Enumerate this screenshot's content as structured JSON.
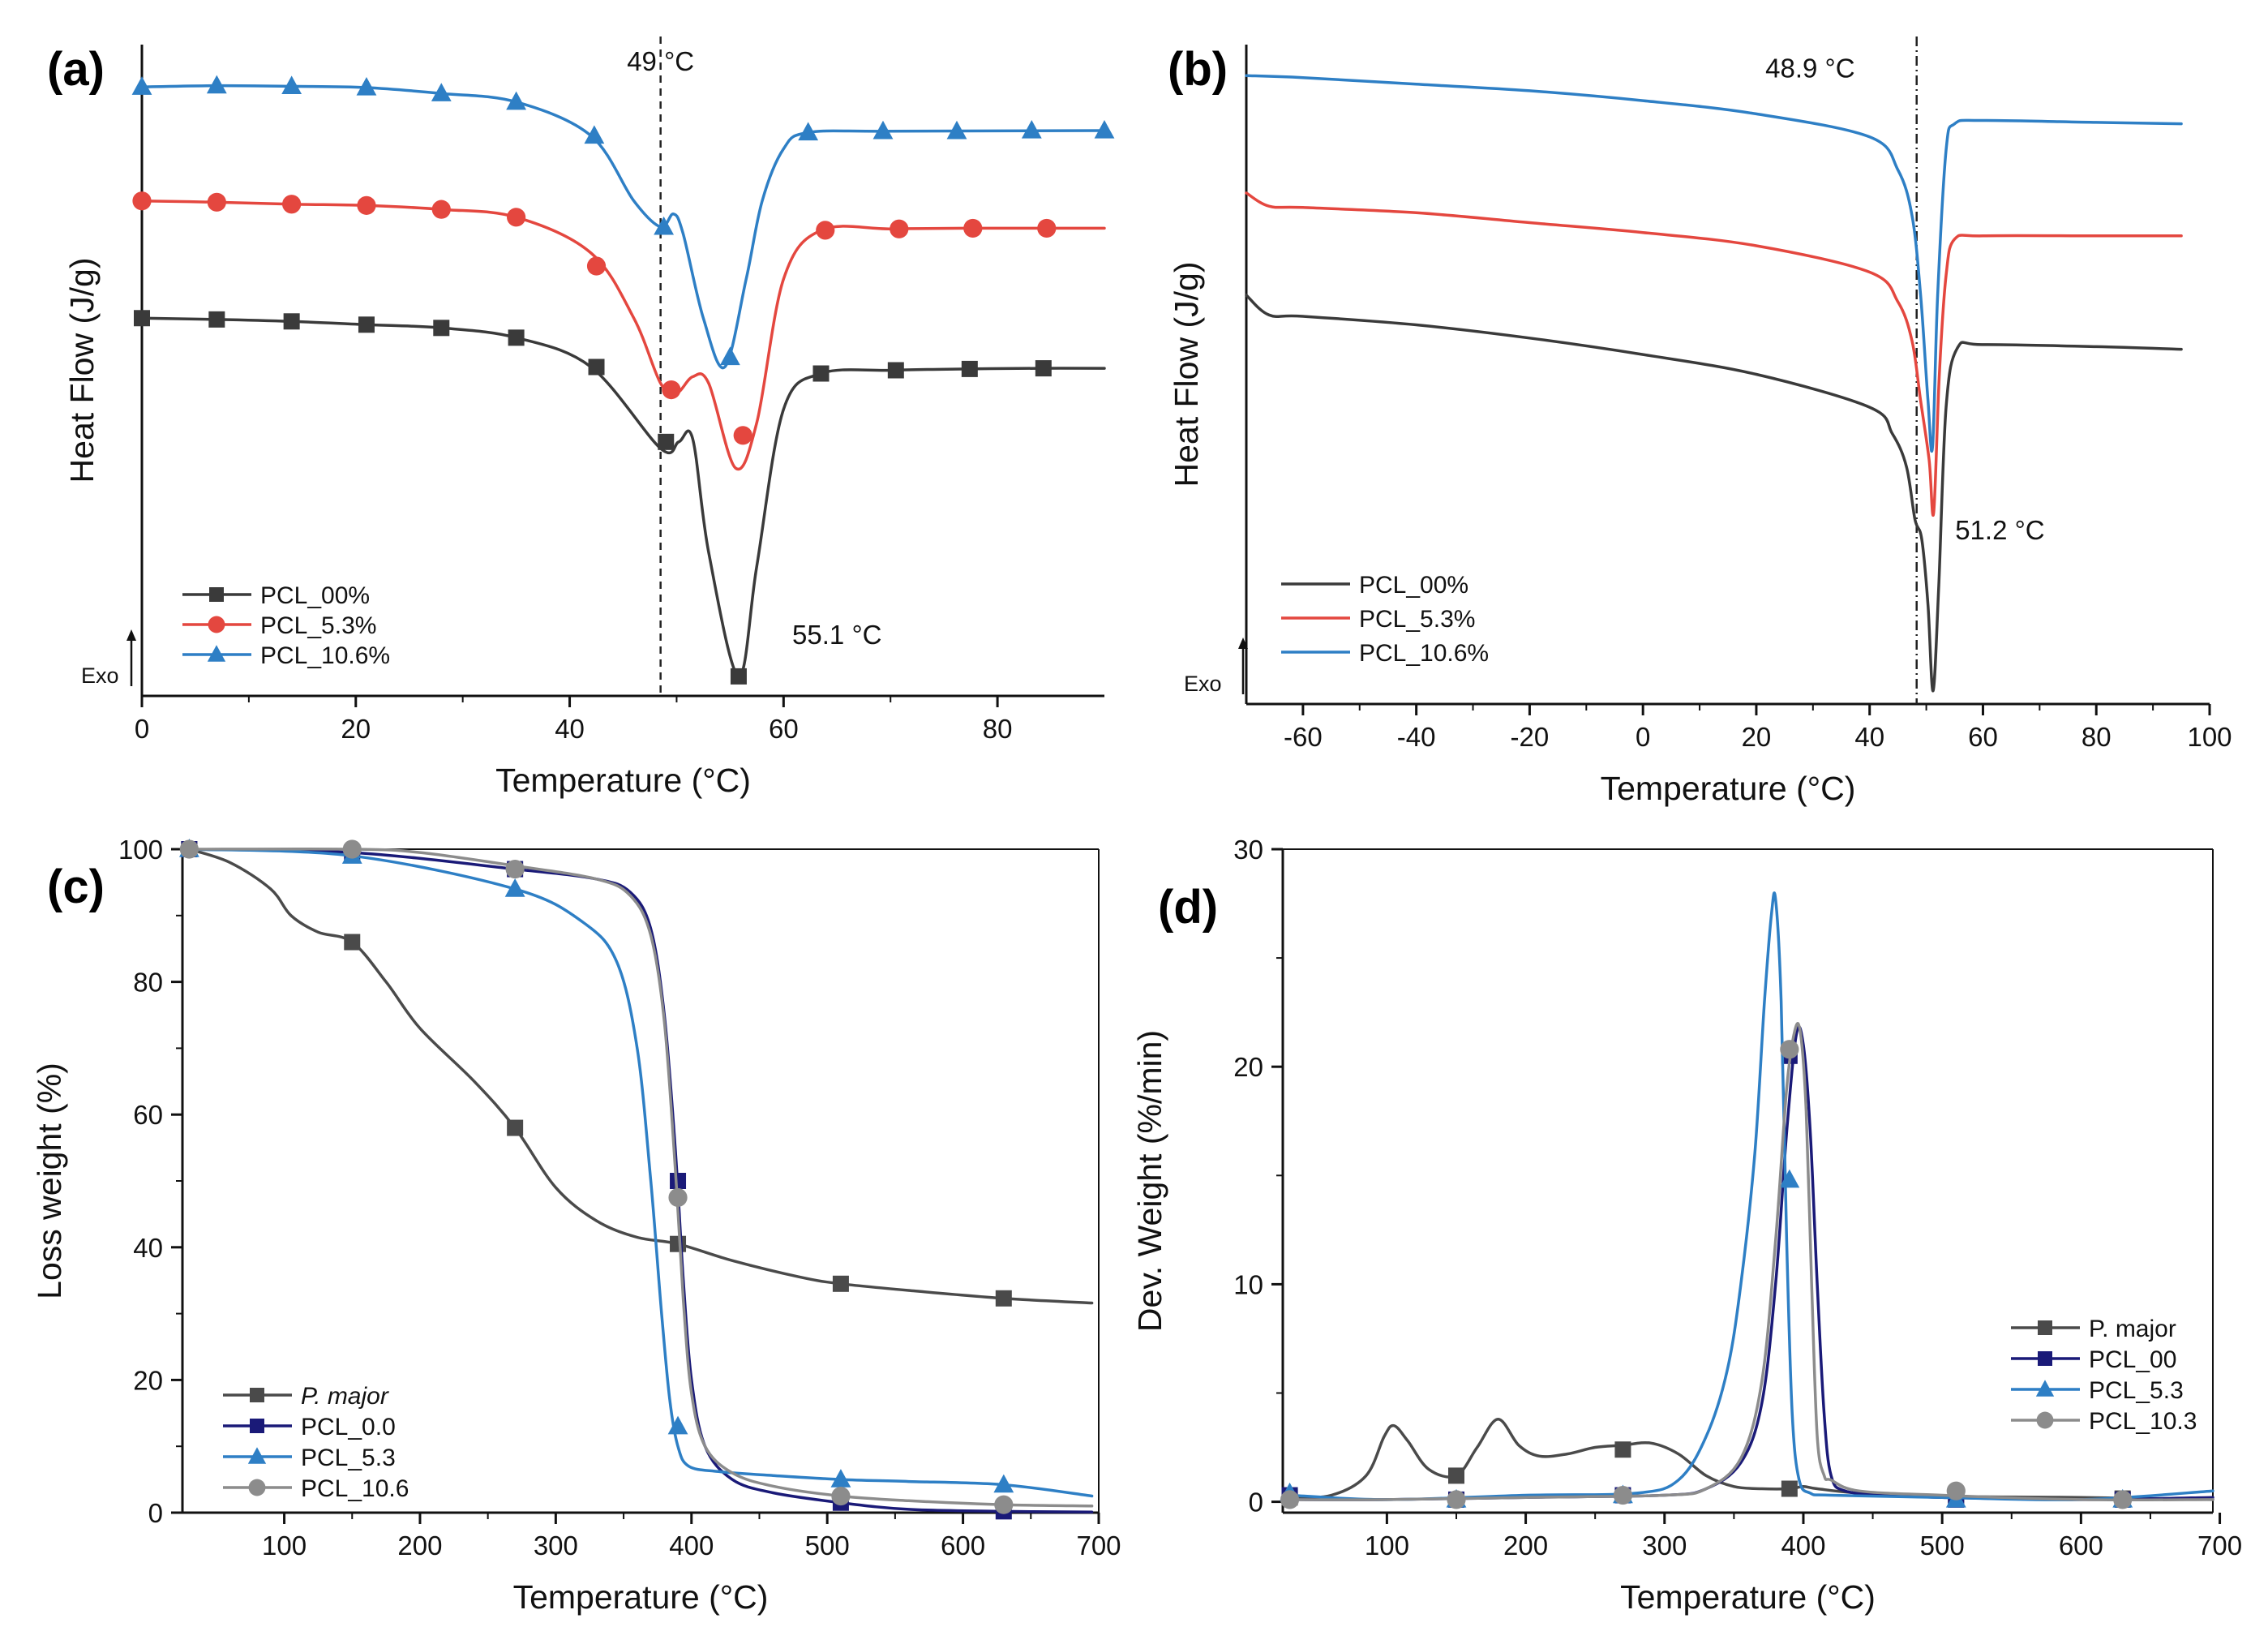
{
  "figure": {
    "panels": [
      "(a)",
      "(b)",
      "(c)",
      "(d)"
    ]
  },
  "chart_data": [
    {
      "id": "a",
      "type": "line",
      "panel_label": "(a)",
      "title": "",
      "xlabel": "Temperature (°C)",
      "ylabel": "Heat Flow (J/g)",
      "xlim": [
        0,
        90
      ],
      "ylim": [
        0,
        100
      ],
      "xticks": [
        "0",
        "20",
        "40",
        "60",
        "80"
      ],
      "xtick_values": [
        0,
        20,
        40,
        60,
        80
      ],
      "y_ticks_shown": false,
      "legend_position": "bottom-left",
      "exo_label": "Exo",
      "annotations": [
        {
          "text": "49 °C",
          "x": 48.5,
          "y": 96
        },
        {
          "text": "55.1 °C",
          "x": 65,
          "y": 8
        }
      ],
      "reference_line": {
        "x": 48.5,
        "style": "dashed"
      },
      "series": [
        {
          "name": "PCL_00%",
          "color": "#3a3a3a",
          "marker": "square",
          "x": [
            0,
            7,
            14,
            21,
            28,
            35,
            42,
            48.5,
            50.2,
            51.5,
            53,
            55.8,
            57.5,
            60,
            63.5,
            70,
            77,
            84,
            90
          ],
          "y": [
            58,
            57.8,
            57.5,
            57,
            56.5,
            55,
            50.5,
            38,
            39,
            39.5,
            22,
            3,
            20,
            44,
            49.5,
            50,
            50.2,
            50.3,
            50.3
          ],
          "marker_x": [
            0,
            7,
            14,
            21,
            28,
            35,
            42.5,
            49,
            55.8,
            63.5,
            70.5,
            77.4,
            84.3
          ],
          "marker_y": [
            58,
            57.8,
            57.5,
            57,
            56.5,
            55,
            50.5,
            39,
            3,
            49.5,
            50,
            50.2,
            50.3
          ]
        },
        {
          "name": "PCL_5.3%",
          "color": "#e4473f",
          "marker": "circle",
          "x": [
            0,
            7,
            14,
            21,
            28,
            35,
            42,
            46,
            48.5,
            50,
            51.5,
            53,
            55.5,
            57.5,
            60,
            63.5,
            70,
            77,
            90
          ],
          "y": [
            76,
            75.8,
            75.5,
            75.3,
            74.7,
            73.5,
            68,
            58,
            48,
            46.5,
            49,
            48,
            35,
            42,
            64,
            71.5,
            71.7,
            71.8,
            71.8
          ],
          "marker_x": [
            0,
            7,
            14,
            21,
            28,
            35,
            42.5,
            49.5,
            56.2,
            63.9,
            70.8,
            77.7,
            84.6
          ],
          "marker_y": [
            76,
            75.8,
            75.5,
            75.3,
            74.7,
            73.5,
            66,
            47,
            40,
            71.5,
            71.7,
            71.8,
            71.8
          ]
        },
        {
          "name": "PCL_10.6%",
          "color": "#2e7fc5",
          "marker": "triangle",
          "x": [
            0,
            7,
            14,
            21,
            28,
            35,
            42,
            46,
            48.5,
            49.7,
            50.6,
            52.5,
            54.5,
            56.5,
            58,
            60,
            62.3,
            70,
            90
          ],
          "y": [
            93.5,
            93.7,
            93.6,
            93.4,
            92.5,
            91.2,
            86,
            76,
            72,
            74,
            71,
            58,
            50.5,
            64,
            76,
            84,
            86.5,
            86.7,
            86.8
          ],
          "marker_x": [
            0,
            7,
            14,
            21,
            28,
            35,
            42.3,
            48.8,
            55,
            62.3,
            69.3,
            76.2,
            83.2,
            90
          ],
          "marker_y": [
            93.5,
            93.7,
            93.6,
            93.4,
            92.5,
            91.2,
            86,
            72,
            52,
            86.5,
            86.7,
            86.7,
            86.8,
            86.8
          ]
        }
      ]
    },
    {
      "id": "b",
      "type": "line",
      "panel_label": "(b)",
      "title": "",
      "xlabel": "Temperature (°C)",
      "ylabel": "Heat Flow (J/g)",
      "xlim": [
        -70,
        100
      ],
      "ylim": [
        0,
        100
      ],
      "xticks": [
        "-60",
        "-40",
        "-20",
        "0",
        "20",
        "40",
        "60",
        "80",
        "100"
      ],
      "xtick_values": [
        -60,
        -40,
        -20,
        0,
        20,
        40,
        60,
        80,
        100
      ],
      "y_ticks_shown": false,
      "legend_position": "bottom-left",
      "exo_label": "Exo",
      "annotations": [
        {
          "text": "48.9 °C",
          "x": 29.5,
          "y": 95
        },
        {
          "text": "51.2 °C",
          "x": 63,
          "y": 25
        }
      ],
      "reference_line": {
        "x": 48.3,
        "style": "dash-dot"
      },
      "series": [
        {
          "name": "PCL_00%",
          "color": "#3a3a3a",
          "x": [
            -70,
            -66,
            -60,
            -40,
            -20,
            0,
            20,
            40,
            44,
            46.5,
            48,
            49.2,
            50.3,
            51.2,
            52.2,
            53.5,
            55.5,
            60,
            80,
            95
          ],
          "y": [
            62,
            59,
            58.8,
            57.5,
            55.5,
            53,
            50,
            45,
            41,
            36,
            28,
            25,
            15,
            2,
            18,
            45,
            54,
            54.5,
            54.2,
            53.8
          ]
        },
        {
          "name": "PCL_5.3%",
          "color": "#e4473f",
          "x": [
            -70,
            -66,
            -60,
            -40,
            -20,
            0,
            20,
            40,
            45,
            47.5,
            49,
            50.5,
            51.3,
            52.3,
            53.5,
            55,
            60,
            80,
            95
          ],
          "y": [
            77.5,
            75.5,
            75.3,
            74.5,
            73,
            71.5,
            69.5,
            65.5,
            61,
            55,
            46,
            37,
            29,
            50,
            65,
            70.5,
            71,
            71,
            71
          ]
        },
        {
          "name": "PCL_10.6%",
          "color": "#2e7fc5",
          "x": [
            -70,
            -60,
            -40,
            -20,
            0,
            20,
            40,
            45,
            47.5,
            49,
            50.3,
            51.1,
            52,
            53.5,
            55,
            60,
            80,
            95
          ],
          "y": [
            95.3,
            95,
            94,
            93,
            91.5,
            89.5,
            86,
            81,
            74,
            62,
            46,
            39,
            62,
            84,
            88,
            88.5,
            88.2,
            88
          ]
        }
      ]
    },
    {
      "id": "c",
      "type": "line",
      "panel_label": "(c)",
      "title": "",
      "xlabel": "Temperature (°C)",
      "ylabel": "Loss weight (%)",
      "xlim": [
        25,
        700
      ],
      "ylim": [
        0,
        100
      ],
      "xticks": [
        "100",
        "200",
        "300",
        "400",
        "500",
        "600",
        "700"
      ],
      "xtick_values": [
        100,
        200,
        300,
        400,
        500,
        600,
        700
      ],
      "yticks": [
        "0",
        "20",
        "40",
        "60",
        "80",
        "100"
      ],
      "ytick_values": [
        0,
        20,
        40,
        60,
        80,
        100
      ],
      "legend_position": "bottom-left",
      "series": [
        {
          "name": "P. major",
          "italic": true,
          "color": "#4a4a4a",
          "marker": "square",
          "x": [
            30,
            60,
            90,
            105,
            125,
            150,
            175,
            200,
            240,
            270,
            300,
            330,
            360,
            390,
            430,
            480,
            510,
            560,
            630,
            695
          ],
          "y": [
            100,
            98,
            94,
            90,
            87.5,
            86,
            80,
            73,
            65,
            58,
            49,
            44,
            41.5,
            40.5,
            38,
            35.5,
            34.5,
            33.5,
            32.3,
            31.6
          ],
          "marker_x": [
            30,
            150,
            270,
            390,
            510,
            630
          ],
          "marker_y": [
            100,
            86,
            58,
            40.5,
            34.5,
            32.3
          ]
        },
        {
          "name": "PCL_0.0",
          "color": "#1a1a78",
          "marker": "square",
          "x": [
            30,
            150,
            270,
            330,
            355,
            370,
            380,
            388,
            394,
            400,
            410,
            430,
            460,
            510,
            560,
            630,
            695
          ],
          "y": [
            100,
            99.5,
            97,
            95.5,
            93.5,
            88,
            75,
            55,
            35,
            20,
            10,
            5,
            3,
            1.5,
            0.5,
            0.2,
            0.1
          ],
          "marker_x": [
            30,
            150,
            270,
            390,
            510,
            630
          ],
          "marker_y": [
            100,
            99.5,
            97,
            50,
            1.5,
            0.2
          ]
        },
        {
          "name": "PCL_5.3",
          "color": "#2e7fc5",
          "marker": "triangle",
          "x": [
            30,
            150,
            270,
            320,
            345,
            360,
            370,
            378,
            384,
            390,
            398,
            420,
            460,
            510,
            560,
            630,
            695
          ],
          "y": [
            100,
            99,
            94,
            89,
            83,
            70,
            50,
            30,
            17,
            10,
            7,
            6.2,
            5.6,
            5,
            4.7,
            4.2,
            2.5
          ],
          "marker_x": [
            30,
            150,
            270,
            390,
            510,
            630
          ],
          "marker_y": [
            100,
            99,
            94,
            13,
            5,
            4.2
          ]
        },
        {
          "name": "PCL_10.6",
          "color": "#8c8c8c",
          "marker": "circle",
          "x": [
            30,
            150,
            200,
            270,
            330,
            355,
            370,
            380,
            388,
            394,
            400,
            410,
            430,
            460,
            510,
            560,
            630,
            695
          ],
          "y": [
            100,
            100,
            99.5,
            97.5,
            95.5,
            93,
            87,
            74,
            52,
            32,
            18,
            10,
            6,
            4,
            2.5,
            1.8,
            1.2,
            1
          ],
          "marker_x": [
            30,
            150,
            270,
            390,
            510,
            630
          ],
          "marker_y": [
            100,
            100,
            97,
            47.5,
            2.5,
            1.2
          ]
        }
      ]
    },
    {
      "id": "d",
      "type": "line",
      "panel_label": "(d)",
      "title": "",
      "xlabel": "Temperature (°C)",
      "ylabel": "Dev. Weight (%/min)",
      "xlim": [
        25,
        695
      ],
      "ylim": [
        -0.5,
        30
      ],
      "xticks": [
        "100",
        "200",
        "300",
        "400",
        "500",
        "600",
        "700"
      ],
      "xtick_values": [
        100,
        200,
        300,
        400,
        500,
        600,
        700
      ],
      "yticks": [
        "0",
        "10",
        "20",
        "30"
      ],
      "ytick_values": [
        0,
        10,
        20,
        30
      ],
      "legend_position": "right",
      "series": [
        {
          "name": "P. major",
          "color": "#4a4a4a",
          "marker": "square",
          "x": [
            30,
            60,
            85,
            98,
            105,
            115,
            130,
            150,
            165,
            180,
            195,
            210,
            230,
            250,
            270,
            290,
            310,
            330,
            350,
            370,
            390,
            400,
            410,
            440,
            500,
            600,
            695
          ],
          "y": [
            0.2,
            0.3,
            1.2,
            3,
            3.5,
            2.8,
            1.5,
            1.2,
            2.5,
            3.8,
            2.6,
            2.1,
            2.2,
            2.5,
            2.6,
            2.7,
            2.2,
            1.2,
            0.7,
            0.6,
            0.6,
            0.7,
            0.6,
            0.4,
            0.25,
            0.2,
            0.1
          ],
          "marker_x": [
            30,
            150,
            270,
            390,
            510,
            630
          ],
          "marker_y": [
            0.2,
            1.2,
            2.4,
            0.6,
            0.3,
            0.15
          ]
        },
        {
          "name": "PCL_00",
          "color": "#1a1a78",
          "marker": "square",
          "x": [
            30,
            100,
            200,
            300,
            330,
            355,
            370,
            380,
            388,
            395,
            400,
            405,
            410,
            415,
            420,
            430,
            460,
            500,
            600,
            695
          ],
          "y": [
            0.1,
            0.1,
            0.2,
            0.3,
            0.6,
            1.8,
            4.5,
            10,
            17,
            21.5,
            21,
            17,
            10,
            4,
            1.2,
            0.5,
            0.3,
            0.2,
            0.1,
            0.2
          ],
          "marker_x": [
            30,
            150,
            270,
            390,
            510,
            630
          ],
          "marker_y": [
            0.3,
            0.1,
            0.3,
            20.5,
            0.1,
            0.1
          ]
        },
        {
          "name": "PCL_5.3",
          "color": "#2e7fc5",
          "marker": "triangle",
          "x": [
            30,
            100,
            200,
            280,
            310,
            330,
            345,
            355,
            365,
            372,
            377,
            380,
            384,
            388,
            392,
            397,
            405,
            420,
            500,
            600,
            695
          ],
          "y": [
            0.3,
            0.1,
            0.3,
            0.4,
            1,
            3,
            6,
            10,
            16,
            23,
            27,
            27.7,
            23,
            12,
            4,
            1,
            0.4,
            0.3,
            0.2,
            0.1,
            0.5
          ],
          "marker_x": [
            30,
            150,
            270,
            390,
            510,
            630
          ],
          "marker_y": [
            0.4,
            0.1,
            0.3,
            14.8,
            0.1,
            0.1
          ]
        },
        {
          "name": "PCL_10.3",
          "color": "#8c8c8c",
          "marker": "circle",
          "x": [
            30,
            100,
            200,
            300,
            330,
            355,
            370,
            380,
            388,
            394,
            398,
            402,
            406,
            410,
            415,
            420,
            440,
            500,
            600,
            695
          ],
          "y": [
            0.1,
            0.1,
            0.2,
            0.3,
            0.6,
            2,
            5.5,
            12,
            19,
            21.7,
            21.5,
            18,
            10,
            3,
            1.2,
            1,
            0.5,
            0.3,
            0.1,
            0.1
          ],
          "marker_x": [
            30,
            150,
            270,
            390,
            510,
            630
          ],
          "marker_y": [
            0.1,
            0.1,
            0.3,
            20.8,
            0.5,
            0.1
          ]
        }
      ]
    }
  ]
}
